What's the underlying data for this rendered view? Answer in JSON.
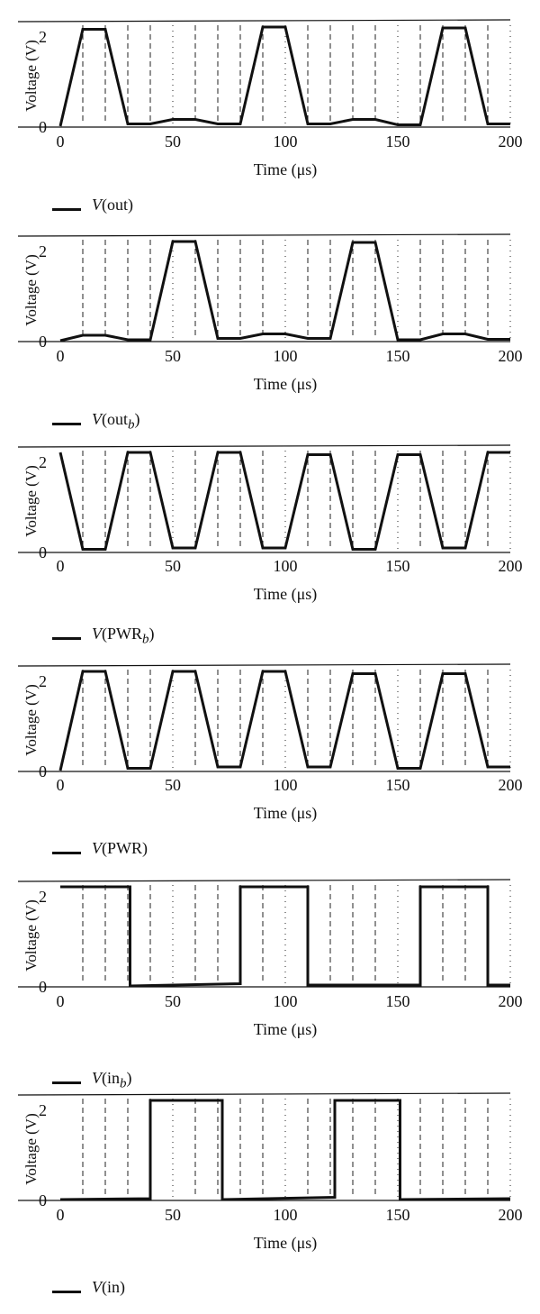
{
  "chart_data": [
    {
      "type": "line",
      "xlabel": "Time (μs)",
      "ylabel": "Voltage (V)",
      "xlim": [
        0,
        200
      ],
      "ylim": [
        0,
        2.2
      ],
      "xticks": [
        "0",
        "50",
        "100",
        "150",
        "200"
      ],
      "yticks": [
        "0",
        "2"
      ],
      "grid": "vertical lines every 10 μs, alternating dashed and dotted",
      "legend": {
        "var": "V",
        "name": "out",
        "sub": ""
      },
      "series": [
        {
          "name": "V(out)",
          "x": [
            0,
            10,
            20,
            30,
            40,
            50,
            60,
            70,
            80,
            90,
            100,
            110,
            120,
            130,
            140,
            150,
            160,
            170,
            180,
            190,
            200
          ],
          "y": [
            0,
            2.15,
            2.15,
            0.05,
            0.05,
            0.15,
            0.15,
            0.05,
            0.05,
            2.2,
            2.2,
            0.05,
            0.05,
            0.15,
            0.15,
            0.03,
            0.03,
            2.18,
            2.18,
            0.05,
            0.05
          ]
        }
      ]
    },
    {
      "type": "line",
      "xlabel": "Time (μs)",
      "ylabel": "Voltage (V)",
      "xlim": [
        0,
        200
      ],
      "ylim": [
        0,
        2.2
      ],
      "xticks": [
        "0",
        "50",
        "100",
        "150",
        "200"
      ],
      "yticks": [
        "0",
        "2"
      ],
      "grid": "vertical lines every 10 μs, alternating dashed and dotted",
      "legend": {
        "var": "V",
        "name": "out",
        "sub": "b"
      },
      "series": [
        {
          "name": "V(out_b)",
          "x": [
            0,
            10,
            20,
            30,
            40,
            50,
            60,
            70,
            80,
            90,
            100,
            110,
            120,
            130,
            140,
            150,
            160,
            170,
            180,
            190,
            200
          ],
          "y": [
            0,
            0.12,
            0.12,
            0.02,
            0.02,
            2.2,
            2.2,
            0.05,
            0.05,
            0.15,
            0.15,
            0.05,
            0.05,
            2.18,
            2.18,
            0.02,
            0.02,
            0.15,
            0.15,
            0.03,
            0.03
          ]
        }
      ]
    },
    {
      "type": "line",
      "xlabel": "Time (μs)",
      "ylabel": "Voltage (V)",
      "xlim": [
        0,
        200
      ],
      "ylim": [
        0,
        2.2
      ],
      "xticks": [
        "0",
        "50",
        "100",
        "150",
        "200"
      ],
      "yticks": [
        "0",
        "2"
      ],
      "grid": "vertical lines every 10 μs, alternating dashed and dotted",
      "legend": {
        "var": "V",
        "name": "PWR",
        "sub": "b"
      },
      "series": [
        {
          "name": "V(PWR_b)",
          "x": [
            0,
            10,
            20,
            30,
            40,
            50,
            60,
            70,
            80,
            90,
            100,
            110,
            120,
            130,
            140,
            150,
            160,
            170,
            180,
            190,
            200
          ],
          "y": [
            2.2,
            0.05,
            0.05,
            2.2,
            2.2,
            0.08,
            0.08,
            2.2,
            2.2,
            0.08,
            0.08,
            2.15,
            2.15,
            0.05,
            0.05,
            2.15,
            2.15,
            0.08,
            0.08,
            2.2,
            2.2
          ]
        }
      ]
    },
    {
      "type": "line",
      "xlabel": "Time (μs)",
      "ylabel": "Voltage (V)",
      "xlim": [
        0,
        200
      ],
      "ylim": [
        0,
        2.2
      ],
      "xticks": [
        "0",
        "50",
        "100",
        "150",
        "200"
      ],
      "yticks": [
        "0",
        "2"
      ],
      "grid": "vertical lines every 10 μs, alternating dashed and dotted",
      "legend": {
        "var": "V",
        "name": "PWR",
        "sub": ""
      },
      "series": [
        {
          "name": "V(PWR)",
          "x": [
            0,
            10,
            20,
            30,
            40,
            50,
            60,
            70,
            80,
            90,
            100,
            110,
            120,
            130,
            140,
            150,
            160,
            170,
            180,
            190,
            200
          ],
          "y": [
            0,
            2.2,
            2.2,
            0.05,
            0.05,
            2.2,
            2.2,
            0.08,
            0.08,
            2.2,
            2.2,
            0.08,
            0.08,
            2.15,
            2.15,
            0.05,
            0.05,
            2.15,
            2.15,
            0.08,
            0.08
          ]
        }
      ]
    },
    {
      "type": "line",
      "xlabel": "Time (μs)",
      "ylabel": "Voltage (V)",
      "xlim": [
        0,
        200
      ],
      "ylim": [
        0,
        2.2
      ],
      "xticks": [
        "0",
        "50",
        "100",
        "150",
        "200"
      ],
      "yticks": [
        "0",
        "2"
      ],
      "grid": "vertical lines every 10 μs, alternating dashed and dotted",
      "legend": {
        "var": "V",
        "name": "in",
        "sub": "b"
      },
      "series": [
        {
          "name": "V(in_b)",
          "x": [
            0,
            31,
            31,
            80,
            80,
            110,
            110,
            160,
            160,
            190,
            190,
            200
          ],
          "y": [
            2.2,
            2.2,
            0,
            0.05,
            2.2,
            2.2,
            0.02,
            0.02,
            2.2,
            2.2,
            0.02,
            0.02
          ]
        }
      ]
    },
    {
      "type": "line",
      "xlabel": "Time (μs)",
      "ylabel": "Voltage (V)",
      "xlim": [
        0,
        200
      ],
      "ylim": [
        0,
        2.2
      ],
      "xticks": [
        "0",
        "50",
        "100",
        "150",
        "200"
      ],
      "yticks": [
        "0",
        "2"
      ],
      "grid": "vertical lines every 10 μs, alternating dashed and dotted",
      "legend": {
        "var": "V",
        "name": "in",
        "sub": ""
      },
      "series": [
        {
          "name": "V(in)",
          "x": [
            0,
            40,
            40,
            72,
            72,
            122,
            122,
            151,
            151,
            200
          ],
          "y": [
            0,
            0.02,
            2.2,
            2.2,
            0,
            0.05,
            2.2,
            2.2,
            0,
            0.02
          ]
        }
      ]
    }
  ]
}
